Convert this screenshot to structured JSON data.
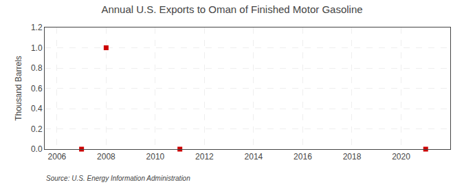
{
  "chart_data": {
    "type": "scatter",
    "title": "Annual U.S. Exports to Oman of Finished Motor Gasoline",
    "ylabel": "Thousand Barrels",
    "annotations": [
      "Source: U.S. Energy Information Administration"
    ],
    "x": [
      2007,
      2008,
      2011,
      2021
    ],
    "values": [
      0.0,
      1.0,
      0.0,
      0.0
    ],
    "color": "#cc0000",
    "marker": "square",
    "xlim": [
      2005.5,
      2022.0
    ],
    "ylim": [
      0,
      1.2
    ],
    "xticks": [
      2006,
      2008,
      2010,
      2012,
      2014,
      2016,
      2018,
      2020
    ],
    "yticks": [
      {
        "value": 0,
        "label": "0.0"
      },
      0.2,
      0.4,
      0.6,
      0.8,
      {
        "value": 1,
        "label": "1.0"
      },
      1.2
    ],
    "grid": true
  }
}
